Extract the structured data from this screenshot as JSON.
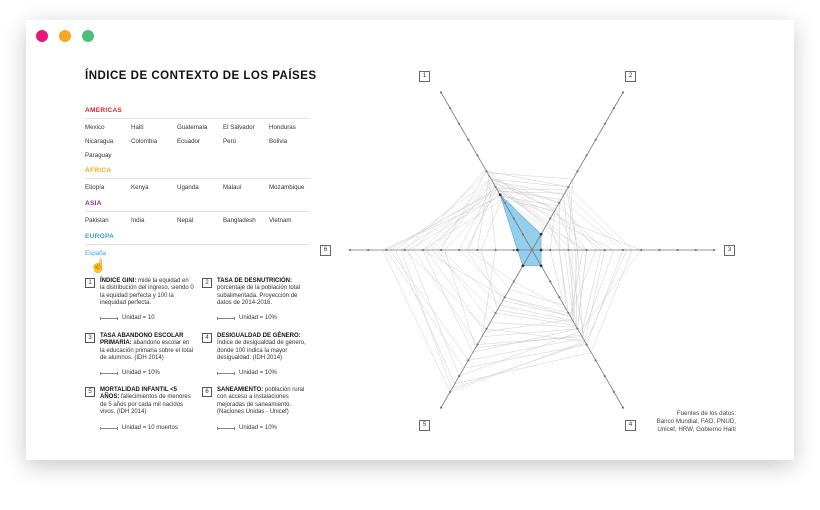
{
  "window_controls": {
    "close": "#e6177a",
    "minimize": "#f5a623",
    "maximize": "#4cc07a"
  },
  "title": "ÍNDICE DE CONTEXTO DE LOS PAÍSES",
  "regions": [
    {
      "name": "AMERICAS",
      "color": "#d62727",
      "countries": [
        "Mexico",
        "Haití",
        "Guatemala",
        "El Salvador",
        "Honduras",
        "Nicaragua",
        "Colombia",
        "Ecuador",
        "Perú",
        "Bolivia",
        "Paraguay"
      ]
    },
    {
      "name": "ÁFRICA",
      "color": "#f0a623",
      "countries": [
        "Etiopía",
        "Kenya",
        "Uganda",
        "Malauí",
        "Mozambique"
      ]
    },
    {
      "name": "ASIA",
      "color": "#8a2d8e",
      "countries": [
        "Pakistan",
        "India",
        "Nepal",
        "Bangladesh",
        "Vietnam"
      ]
    },
    {
      "name": "EUROPA",
      "color": "#3aa0d8",
      "countries": [
        "España"
      ],
      "selected": "España"
    }
  ],
  "indicators": [
    {
      "number": "1",
      "title": "ÍNDICE GINI:",
      "text": "mide la equidad en la distribución del ingreso, siendo 0 la equidad perfecta y 100 la inequidad perfecta.",
      "unit": "Unidad = 10"
    },
    {
      "number": "2",
      "title": "TASA DE DESNUTRICIÓN:",
      "text": "porcentaje de la población total subalimentada. Proyección de datos de 2014-2016.",
      "unit": "Unidad = 10%"
    },
    {
      "number": "3",
      "title": "TASA ABANDONO ESCOLAR PRIMARIA:",
      "text": "abandono escolar en la educación primaria sobre el total de alumnos. (IDH 2014)",
      "unit": "Unidad = 10%"
    },
    {
      "number": "4",
      "title": "DESIGUALDAD DE GÉNERO:",
      "text": "Índice de desigualdad de género, donde 100 indica la mayor desigualdad. (IDH 2014)",
      "unit": "Unidad = 10%"
    },
    {
      "number": "5",
      "title": "MORTALIDAD INFANTIL <5 AÑOS:",
      "text": "fallecimientos de menores de 5 años por cada mil nacidos vivos. (IDH 2014)",
      "unit": "Unidad = 10 muertos"
    },
    {
      "number": "6",
      "title": "SANEAMIENTO:",
      "text": "población rural con acceso a instalaciones mejoradas de saneamiento. (Naciones Unidas - Unicef)",
      "unit": "Unidad = 10%"
    }
  ],
  "sources": {
    "line1": "Fuentes de los datos:",
    "line2": "Banco Mundial, FAO, PNUD,",
    "line3": "Unicef, HRW, Gobierno Haití"
  },
  "chart_data": {
    "type": "radar",
    "axes": [
      "1",
      "2",
      "3",
      "4",
      "5",
      "6"
    ],
    "scale_steps": 10,
    "highlight": {
      "name": "España",
      "color": "#8ecbec",
      "values": [
        3.5,
        1.0,
        0.5,
        1.0,
        1.0,
        0.8
      ]
    },
    "background_series": [
      [
        4.5,
        3.0,
        1.5,
        4.0,
        3.0,
        6.0
      ],
      [
        4.8,
        1.5,
        3.0,
        5.0,
        5.5,
        2.0
      ],
      [
        5.0,
        4.0,
        2.5,
        4.5,
        3.5,
        5.0
      ],
      [
        4.7,
        2.5,
        1.0,
        3.5,
        2.5,
        3.0
      ],
      [
        4.4,
        3.5,
        2.0,
        4.8,
        4.0,
        5.5
      ],
      [
        5.1,
        2.0,
        4.5,
        5.5,
        6.0,
        6.5
      ],
      [
        4.2,
        3.0,
        3.5,
        4.2,
        3.0,
        4.0
      ],
      [
        4.9,
        4.5,
        2.0,
        5.8,
        5.0,
        7.0
      ],
      [
        4.1,
        1.8,
        1.5,
        3.8,
        2.0,
        3.5
      ],
      [
        3.8,
        3.2,
        5.0,
        6.0,
        7.5,
        8.0
      ],
      [
        3.5,
        2.2,
        6.0,
        5.2,
        8.0,
        6.8
      ],
      [
        4.5,
        4.0,
        5.5,
        6.5,
        8.5,
        7.5
      ],
      [
        3.4,
        2.8,
        4.0,
        5.8,
        9.0,
        8.2
      ],
      [
        3.2,
        2.5,
        3.0,
        5.0,
        6.5,
        6.0
      ],
      [
        3.9,
        3.8,
        2.5,
        5.6,
        7.0,
        7.8
      ],
      [
        4.0,
        1.6,
        2.2,
        4.4,
        5.2,
        5.8
      ],
      [
        3.6,
        2.4,
        3.8,
        5.4,
        6.2,
        4.8
      ],
      [
        3.3,
        1.4,
        1.8,
        4.6,
        3.8,
        2.8
      ],
      [
        3.9,
        1.7,
        2.8,
        4.2,
        3.2,
        3.6
      ],
      [
        3.7,
        3.6,
        5.2,
        5.9,
        8.8,
        7.2
      ],
      [
        4.3,
        2.6,
        2.4,
        4.9,
        4.6,
        5.2
      ]
    ]
  }
}
